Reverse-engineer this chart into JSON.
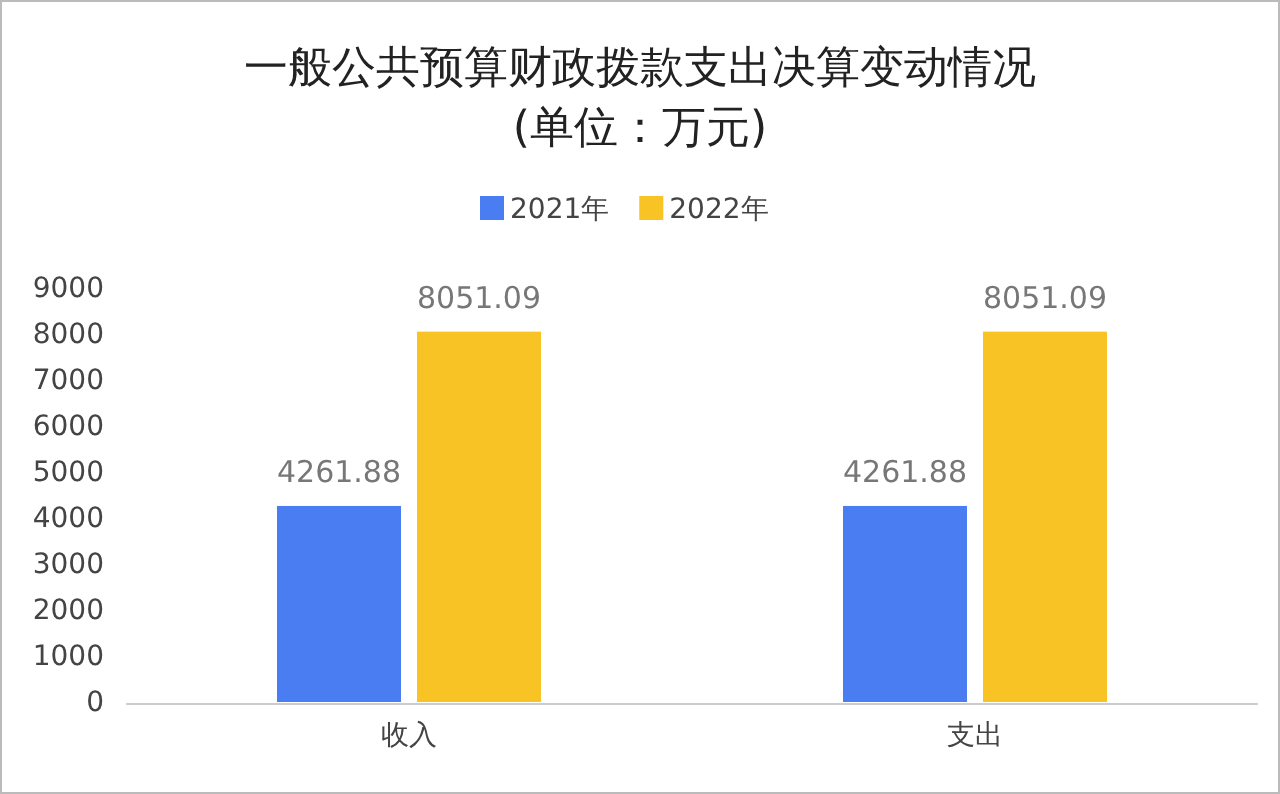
{
  "chart_data": {
    "type": "bar",
    "title": "一般公共预算财政拨款支出决算变动情况",
    "subtitle": "(单位：万元)",
    "categories": [
      "收入",
      "支出"
    ],
    "series": [
      {
        "name": "2021年",
        "color": "#4a7df2",
        "values": [
          4261.88,
          4261.88
        ]
      },
      {
        "name": "2022年",
        "color": "#f7c325",
        "values": [
          8051.09,
          8051.09
        ]
      }
    ],
    "ylim": [
      0,
      9000
    ],
    "yticks": [
      0,
      1000,
      2000,
      3000,
      4000,
      5000,
      6000,
      7000,
      8000,
      9000
    ],
    "data_labels": true,
    "legend": "top",
    "grid": false
  }
}
